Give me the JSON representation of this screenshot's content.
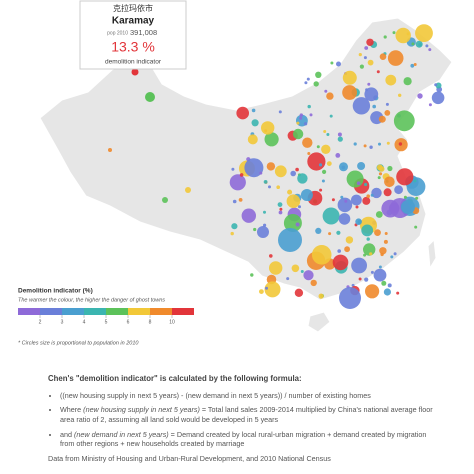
{
  "tooltip": {
    "name_zh": "克拉玛依市",
    "name_en": "Karamay",
    "pop_label": "pop 2010",
    "pop_value": "391,008",
    "indicator_value": "13.3 %",
    "indicator_label": "demolition indicator"
  },
  "legend": {
    "title": "Demolition indicator (%)",
    "subtitle": "The warmer the colour, the higher the danger of ghost towns",
    "colors": [
      "#8e6ad8",
      "#6a7fd9",
      "#4a9fd0",
      "#3bb5b0",
      "#5cc25a",
      "#f2c838",
      "#f08a2c",
      "#e2353a"
    ],
    "ticks": [
      "2",
      "3",
      "4",
      "5",
      "6",
      "8",
      "10"
    ]
  },
  "footnote": "* Circles size is proportional to population in 2010",
  "formula": {
    "title": "Chen's \"demolition indicator\" is calculated by the following formula:",
    "bullets": [
      [
        {
          "text": "((new housing supply in next 5 years) - (new demand in next 5 years)) / number of existing homes"
        }
      ],
      [
        {
          "text": "Where "
        },
        {
          "text": "(new housing supply in next 5 years)",
          "italic": true
        },
        {
          "text": " = Total land sales 2009-2014 multiplied by China's national average floor area ratio of 2, assuming all land sold would be developed in 5 years"
        }
      ],
      [
        {
          "text": "and "
        },
        {
          "text": "(new demand in next 5 years)",
          "italic": true
        },
        {
          "text": " = Demand created by local rural-urban migration + demand created by migration from other regions + new households created by marriage"
        }
      ]
    ],
    "source": "Data from Ministry of Housing and Urban-Rural Development, and 2010 National Census"
  }
}
